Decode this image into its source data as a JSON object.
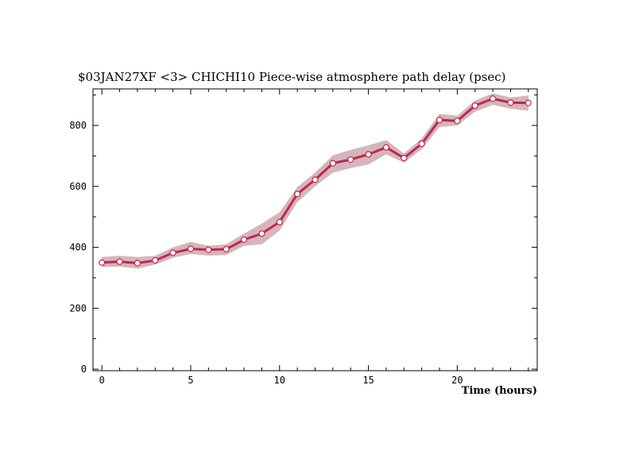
{
  "chart_data": {
    "type": "line",
    "title": "$03JAN27XF <3>  CHICHI10  Piece-wise atmosphere path delay (psec)",
    "xlabel": "Time (hours)",
    "ylabel": "",
    "xlim": [
      -0.5,
      24.5
    ],
    "ylim": [
      -5,
      920
    ],
    "x_ticks": [
      0,
      5,
      10,
      15,
      20
    ],
    "y_ticks": [
      0,
      200,
      400,
      600,
      800
    ],
    "grid": false,
    "colors": {
      "line": "#c0284a",
      "band": "#d4b5bd",
      "marker_fill": "#ffffff"
    },
    "series": [
      {
        "x": [
          0,
          1,
          2,
          3,
          4,
          5,
          6,
          7,
          8,
          9,
          10,
          11,
          12,
          13,
          14,
          15,
          16,
          17,
          18,
          19,
          20,
          21,
          22,
          23,
          24
        ],
        "values": [
          350,
          353,
          348,
          357,
          382,
          395,
          392,
          394,
          425,
          445,
          483,
          575,
          622,
          676,
          688,
          705,
          728,
          693,
          740,
          818,
          815,
          865,
          888,
          875,
          874
        ],
        "lower": [
          335,
          337,
          330,
          343,
          366,
          378,
          373,
          375,
          405,
          410,
          455,
          548,
          600,
          645,
          660,
          672,
          705,
          678,
          722,
          795,
          800,
          845,
          868,
          855,
          848
        ],
        "upper": [
          368,
          372,
          368,
          372,
          400,
          418,
          405,
          410,
          445,
          478,
          515,
          598,
          645,
          702,
          720,
          735,
          752,
          708,
          758,
          838,
          832,
          882,
          905,
          892,
          898
        ]
      }
    ]
  }
}
